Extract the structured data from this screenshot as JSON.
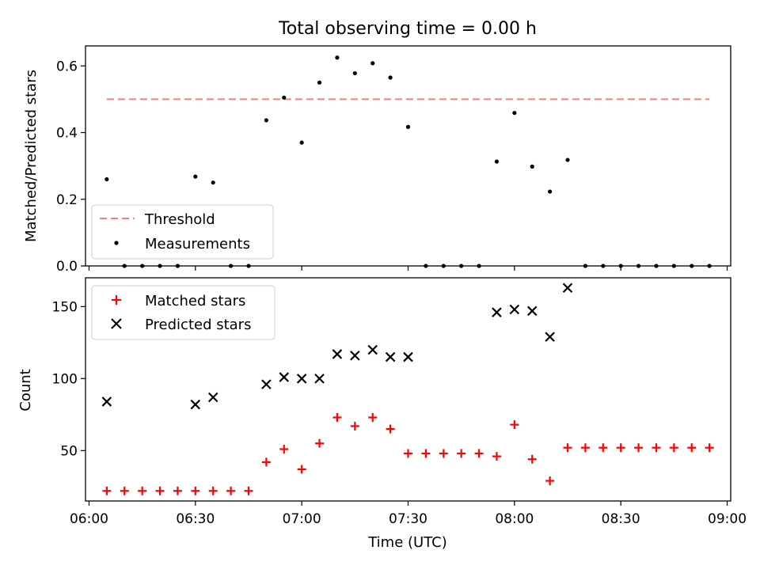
{
  "chart_data": [
    {
      "type": "scatter",
      "title": "Total observing time = 0.00 h",
      "ylabel": "Matched/Predicted stars",
      "xlabel": "",
      "ylim": [
        0,
        0.66
      ],
      "yticks": [
        0.0,
        0.2,
        0.4,
        0.6
      ],
      "yticklabels": [
        "0.0",
        "0.2",
        "0.4",
        "0.6"
      ],
      "legend_position": "lower-left",
      "series": [
        {
          "name": "Threshold",
          "style": "dashed-line",
          "color": "#f08080",
          "x": [
            "06:05",
            "08:55"
          ],
          "values": [
            0.5,
            0.5
          ]
        },
        {
          "name": "Measurements",
          "style": "dot",
          "color": "#000000",
          "x": [
            "06:05",
            "06:10",
            "06:15",
            "06:20",
            "06:25",
            "06:30",
            "06:35",
            "06:40",
            "06:45",
            "06:50",
            "06:55",
            "07:00",
            "07:05",
            "07:10",
            "07:15",
            "07:20",
            "07:25",
            "07:30",
            "07:35",
            "07:40",
            "07:45",
            "07:50",
            "07:55",
            "08:00",
            "08:05",
            "08:10",
            "08:15",
            "08:20",
            "08:25",
            "08:30",
            "08:35",
            "08:40",
            "08:45",
            "08:50",
            "08:55"
          ],
          "values": [
            0.26,
            0.0,
            0.0,
            0.0,
            0.0,
            0.268,
            0.25,
            0.0,
            0.0,
            0.437,
            0.505,
            0.37,
            0.55,
            0.625,
            0.578,
            0.608,
            0.565,
            0.417,
            0.0,
            0.0,
            0.0,
            0.0,
            0.313,
            0.459,
            0.298,
            0.223,
            0.318,
            0.0,
            0.0,
            0.0,
            0.0,
            0.0,
            0.0,
            0.0,
            0.0
          ]
        }
      ]
    },
    {
      "type": "scatter",
      "title": "",
      "ylabel": "Count",
      "xlabel": "Time (UTC)",
      "ylim": [
        15,
        170
      ],
      "yticks": [
        50,
        100,
        150
      ],
      "yticklabels": [
        "50",
        "100",
        "150"
      ],
      "xlim": [
        "05:59",
        "09:01"
      ],
      "xticks": [
        "06:00",
        "06:30",
        "07:00",
        "07:30",
        "08:00",
        "08:30",
        "09:00"
      ],
      "legend_position": "upper-left",
      "series": [
        {
          "name": "Matched stars",
          "style": "plus",
          "color": "#ff0000",
          "x": [
            "06:05",
            "06:10",
            "06:15",
            "06:20",
            "06:25",
            "06:30",
            "06:35",
            "06:40",
            "06:45",
            "06:50",
            "06:55",
            "07:00",
            "07:05",
            "07:10",
            "07:15",
            "07:20",
            "07:25",
            "07:30",
            "07:35",
            "07:40",
            "07:45",
            "07:50",
            "07:55",
            "08:00",
            "08:05",
            "08:10",
            "08:15",
            "08:20",
            "08:25",
            "08:30",
            "08:35",
            "08:40",
            "08:45",
            "08:50",
            "08:55"
          ],
          "values": [
            22,
            22,
            22,
            22,
            22,
            22,
            22,
            22,
            22,
            42,
            51,
            37,
            55,
            73,
            67,
            73,
            65,
            48,
            48,
            48,
            48,
            48,
            46,
            68,
            44,
            29,
            52,
            52,
            52,
            52,
            52,
            52,
            52,
            52,
            52
          ]
        },
        {
          "name": "Predicted stars",
          "style": "x",
          "color": "#000000",
          "x": [
            "06:05",
            "06:30",
            "06:35",
            "06:50",
            "06:55",
            "07:00",
            "07:05",
            "07:10",
            "07:15",
            "07:20",
            "07:25",
            "07:30",
            "07:55",
            "08:00",
            "08:05",
            "08:10",
            "08:15"
          ],
          "values": [
            84,
            82,
            87,
            96,
            101,
            100,
            100,
            117,
            116,
            120,
            115,
            115,
            146,
            148,
            147,
            129,
            163
          ]
        }
      ]
    }
  ]
}
